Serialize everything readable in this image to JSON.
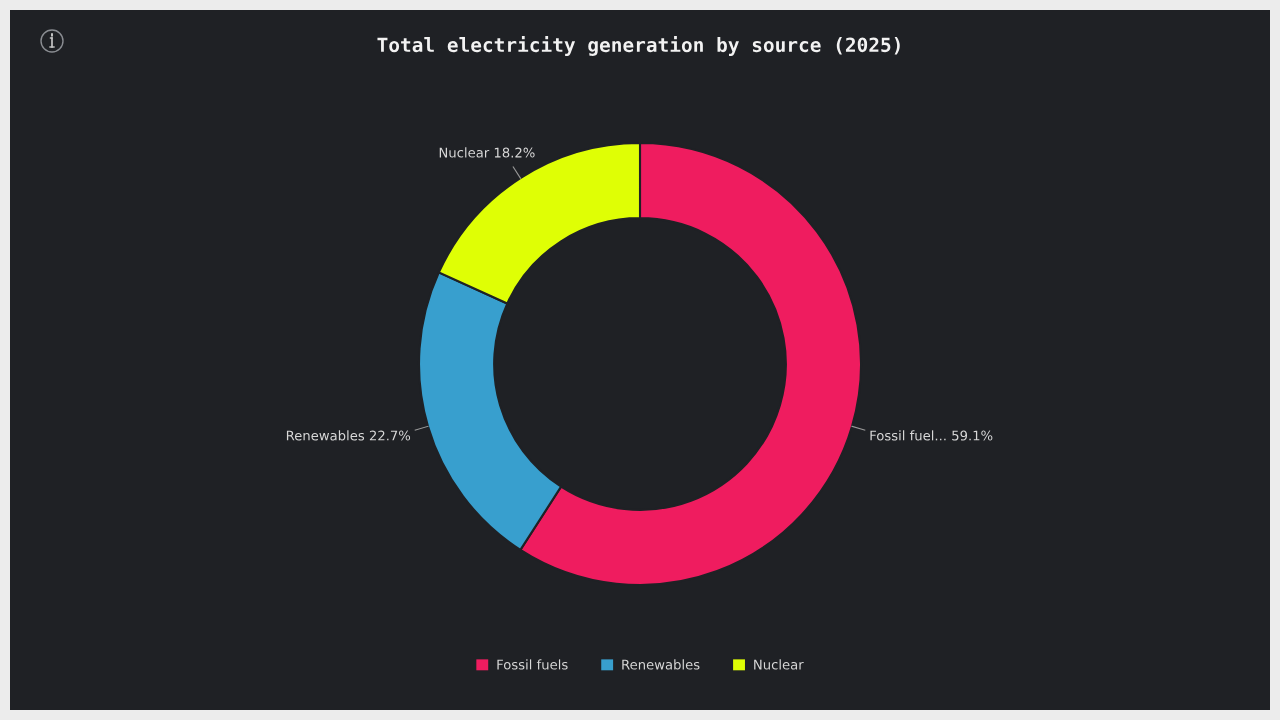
{
  "chart_data": {
    "type": "donut",
    "title": "Total electricity generation by source (2025)",
    "categories": [
      "Fossil fuels",
      "Renewables",
      "Nuclear"
    ],
    "values": [
      59.1,
      22.7,
      18.2
    ],
    "colors": [
      "#ef1c5f",
      "#389fce",
      "#dfff05"
    ],
    "value_labels": [
      "Fossil fuel... 59.1%",
      "Renewables 22.7%",
      "Nuclear 18.2%"
    ],
    "legend": "bottom"
  }
}
